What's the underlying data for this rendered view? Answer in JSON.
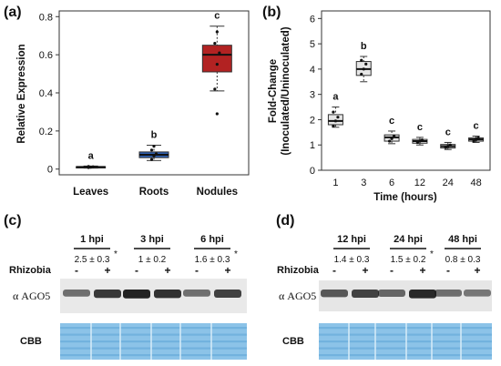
{
  "panels": {
    "a": "(a)",
    "b": "(b)",
    "c": "(c)",
    "d": "(d)"
  },
  "chart_data": [
    {
      "type": "box",
      "panel": "(a)",
      "xlabel": "",
      "ylabel": "Relative Expression",
      "ylim": [
        -0.03,
        0.83
      ],
      "yticks": [
        "0",
        "0.2",
        "0.4",
        "0.6",
        "0.8"
      ],
      "ytick_values": [
        0,
        0.2,
        0.4,
        0.6,
        0.8
      ],
      "categories": [
        "Leaves",
        "Roots",
        "Nodules"
      ],
      "box_colors": [
        "#2b2b2b",
        "#2f5fae",
        "#b22222"
      ],
      "boxes": [
        {
          "min": 0.005,
          "q1": 0.008,
          "median": 0.011,
          "q3": 0.013,
          "max": 0.016,
          "points": [
            0.008,
            0.01,
            0.012,
            0.014
          ],
          "letter": "a"
        },
        {
          "min": 0.045,
          "q1": 0.06,
          "median": 0.075,
          "q3": 0.09,
          "max": 0.125,
          "points": [
            0.05,
            0.07,
            0.08,
            0.1,
            0.12
          ],
          "letter": "b"
        },
        {
          "min": 0.41,
          "q1": 0.51,
          "median": 0.6,
          "q3": 0.65,
          "max": 0.75,
          "points": [
            0.42,
            0.55,
            0.61,
            0.66,
            0.72
          ],
          "outliers": [
            0.29
          ],
          "letter": "c"
        }
      ]
    },
    {
      "type": "box",
      "panel": "(b)",
      "xlabel": "Time (hours)",
      "ylabel_line1": "Fold-Change",
      "ylabel_line2": "(Inoculated/Uninoculated)",
      "ylim": [
        0,
        6.3
      ],
      "yticks": [
        "0",
        "1",
        "2",
        "3",
        "4",
        "5",
        "6"
      ],
      "ytick_values": [
        0,
        1,
        2,
        3,
        4,
        5,
        6
      ],
      "categories": [
        "1",
        "3",
        "6",
        "12",
        "24",
        "48"
      ],
      "boxes": [
        {
          "min": 1.7,
          "q1": 1.8,
          "median": 1.95,
          "q3": 2.2,
          "max": 2.5,
          "points": [
            1.75,
            1.95,
            2.1,
            2.3
          ],
          "letter": "a"
        },
        {
          "min": 3.5,
          "q1": 3.75,
          "median": 4.0,
          "q3": 4.3,
          "max": 4.5,
          "points": [
            3.8,
            4.0,
            4.2,
            4.35
          ],
          "letter": "b"
        },
        {
          "min": 1.05,
          "q1": 1.15,
          "median": 1.3,
          "q3": 1.4,
          "max": 1.55,
          "points": [
            1.15,
            1.25,
            1.35
          ],
          "letter": "c"
        },
        {
          "min": 1.0,
          "q1": 1.07,
          "median": 1.15,
          "q3": 1.22,
          "max": 1.3,
          "points": [
            1.1,
            1.15,
            1.2
          ],
          "letter": "c"
        },
        {
          "min": 0.82,
          "q1": 0.88,
          "median": 0.95,
          "q3": 1.02,
          "max": 1.1,
          "points": [
            0.9,
            0.95,
            1.0
          ],
          "letter": "c"
        },
        {
          "min": 1.1,
          "q1": 1.15,
          "median": 1.22,
          "q3": 1.28,
          "max": 1.35,
          "points": [
            1.15,
            1.22,
            1.28
          ],
          "letter": "c"
        }
      ]
    }
  ],
  "blots": {
    "c": {
      "groups": [
        {
          "label": "1 hpi",
          "value": "2.5 ± 0.3",
          "star": "*"
        },
        {
          "label": "3 hpi",
          "value": "1 ± 0.2",
          "star": ""
        },
        {
          "label": "6 hpi",
          "value": "1.6 ± 0.3",
          "star": "*"
        }
      ],
      "rhizobia_label": "Rhizobia",
      "signs": [
        "-",
        "+",
        "-",
        "+",
        "-",
        "+"
      ],
      "band_intensity": [
        0.45,
        0.8,
        0.95,
        0.85,
        0.45,
        0.75
      ]
    },
    "d": {
      "groups": [
        {
          "label": "12 hpi",
          "value": "1.4 ± 0.3",
          "star": ""
        },
        {
          "label": "24 hpi",
          "value": "1.5 ± 0.2",
          "star": "*"
        },
        {
          "label": "48 hpi",
          "value": "0.8 ± 0.3",
          "star": ""
        }
      ],
      "rhizobia_label": "Rhizobia",
      "signs": [
        "-",
        "+",
        "-",
        "+",
        "-",
        "+"
      ],
      "band_intensity": [
        0.6,
        0.75,
        0.5,
        0.9,
        0.45,
        0.4
      ]
    },
    "ago_label": "α AGO5",
    "cbb_label": "CBB",
    "colors": {
      "blue_stain": "#8cc3e8",
      "band": "#1a1a1a",
      "blot_bg": "#e9e9e9"
    }
  }
}
